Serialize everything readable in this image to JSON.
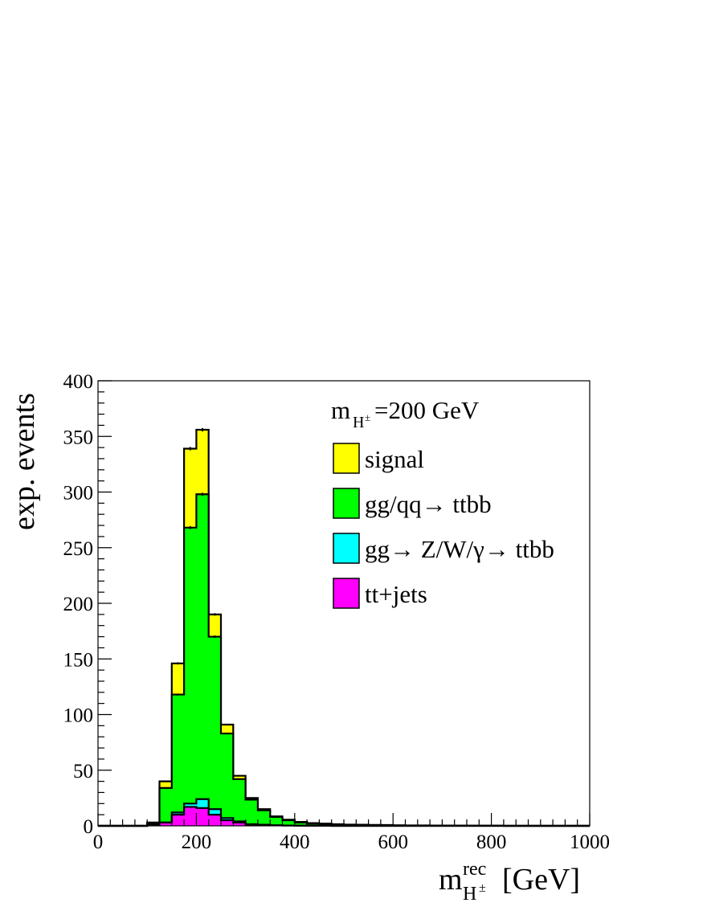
{
  "chart_data": {
    "type": "bar",
    "stacked": true,
    "histogram_step": true,
    "bin_edges": [
      0,
      25,
      50,
      75,
      100,
      125,
      150,
      175,
      200,
      225,
      250,
      275,
      300,
      325,
      350,
      375,
      400,
      425,
      450,
      475,
      500,
      525,
      550,
      575,
      600,
      625,
      650,
      675,
      700,
      725,
      750,
      775,
      800,
      825,
      850,
      875,
      900,
      925,
      950,
      975,
      1000
    ],
    "series": [
      {
        "name": "tt+jets",
        "color": "#ff00ff",
        "values": [
          0,
          0,
          0,
          0,
          1,
          3,
          10,
          17,
          16,
          10,
          5,
          3,
          1,
          1,
          0.5,
          0.3,
          0.2,
          0.1,
          0.1,
          0,
          0,
          0,
          0,
          0,
          0,
          0,
          0,
          0,
          0,
          0,
          0,
          0,
          0,
          0,
          0,
          0,
          0,
          0,
          0,
          0
        ]
      },
      {
        "name": "gg→ Z/W/γ→ ttbb",
        "color": "#00ffff",
        "values": [
          0,
          0,
          0,
          0,
          0,
          0,
          2,
          3,
          8,
          5,
          2,
          1,
          0.5,
          0,
          0,
          0,
          0,
          0,
          0,
          0,
          0,
          0,
          0,
          0,
          0,
          0,
          0,
          0,
          0,
          0,
          0,
          0,
          0,
          0,
          0,
          0,
          0,
          0,
          0,
          0
        ]
      },
      {
        "name": "gg/qq→ ttbb",
        "color": "#00ff00",
        "values": [
          0,
          0,
          0,
          0,
          1,
          31,
          106,
          248,
          274,
          155,
          76,
          38,
          22,
          13,
          7.5,
          4.7,
          2.8,
          1.9,
          1.4,
          1,
          0.8,
          0.7,
          0.6,
          0.5,
          0.4,
          0.3,
          0.3,
          0.2,
          0.2,
          0.1,
          0.1,
          0.1,
          0.1,
          0,
          0,
          0,
          0,
          0,
          0,
          0
        ]
      },
      {
        "name": "signal",
        "color": "#ffff00",
        "values": [
          0,
          0,
          0,
          0,
          1,
          6,
          28,
          71,
          58,
          20,
          8,
          3,
          1.5,
          1,
          0.5,
          0.5,
          0.5,
          0.5,
          0.5,
          0.5,
          0.3,
          0.3,
          0.2,
          0.2,
          0.1,
          0.1,
          0.1,
          0.1,
          0.1,
          0.1,
          0,
          0,
          0,
          0,
          0,
          0,
          0,
          0,
          0,
          0
        ]
      }
    ],
    "xlim": [
      0,
      1000
    ],
    "ylim": [
      0,
      400
    ],
    "x_ticks": [
      "0",
      "200",
      "400",
      "600",
      "800",
      "1000"
    ],
    "y_ticks": [
      "0",
      "50",
      "100",
      "150",
      "200",
      "250",
      "300",
      "350",
      "400"
    ],
    "ylabel": "exp. events",
    "xlabel": {
      "main": "m",
      "superscript": "rec",
      "subscript_base": "H",
      "subscript_sup": "±",
      "unit": "[GeV]"
    },
    "annotation": {
      "prefix": "m",
      "sub_base": "H",
      "sub_sup": "±",
      "suffix": "=200 GeV"
    },
    "legend_order": [
      "signal",
      "gg/qq→ ttbb",
      "gg→ Z/W/γ→ ttbb",
      "tt+jets"
    ],
    "legend_placement": "top-right",
    "grid": false
  }
}
